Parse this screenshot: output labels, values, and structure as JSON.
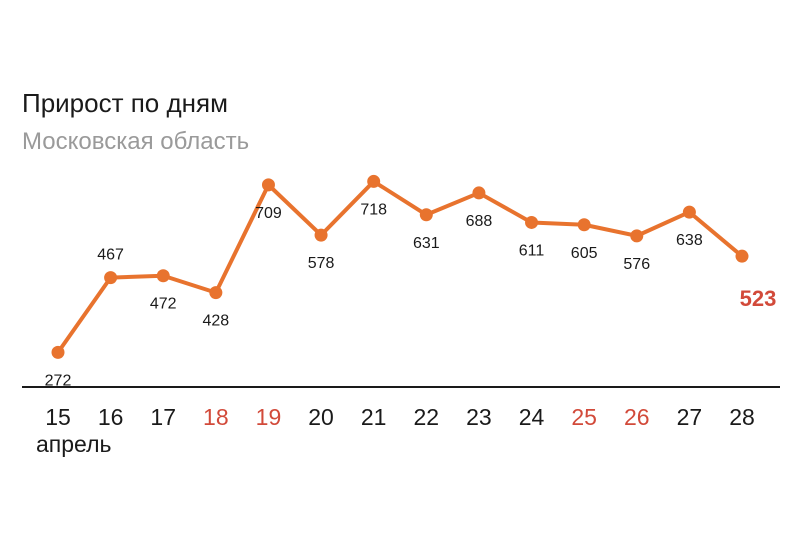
{
  "chart_data": {
    "type": "line",
    "title": "Прирост по дням",
    "subtitle": "Московская область",
    "x": [
      "15",
      "16",
      "17",
      "18",
      "19",
      "20",
      "21",
      "22",
      "23",
      "24",
      "25",
      "26",
      "27",
      "28"
    ],
    "values": [
      272,
      467,
      472,
      428,
      709,
      578,
      718,
      631,
      688,
      611,
      605,
      576,
      638,
      523
    ],
    "highlighted_days": [
      "18",
      "19",
      "25",
      "26"
    ],
    "xlabel": "апрель",
    "ylabel": "",
    "ylim": [
      200,
      800
    ],
    "grid": false,
    "colors": {
      "line": "#e8732e",
      "highlight": "#d24a3a",
      "text": "#1a1a1a",
      "subtitle": "#9a9a9a",
      "axis": "#1a1a1a"
    }
  }
}
